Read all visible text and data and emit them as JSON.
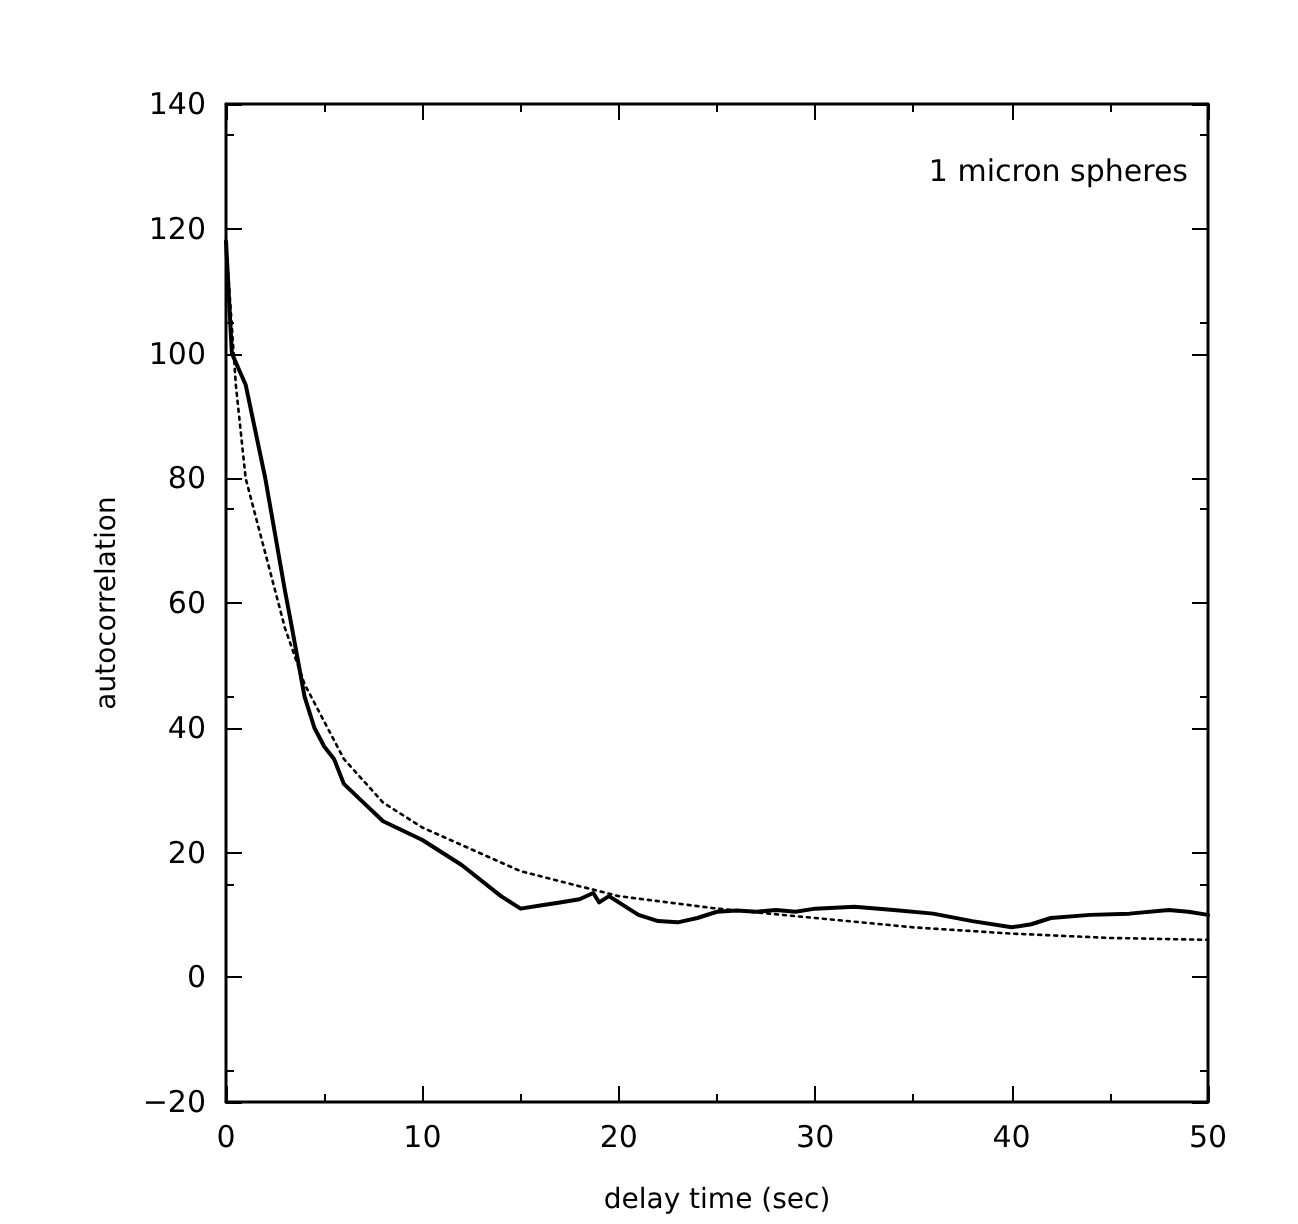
{
  "chart_data": {
    "type": "line",
    "xlabel": "delay time (sec)",
    "ylabel": "autocorrelation",
    "annotations": [
      "1 micron spheres"
    ],
    "xlim": [
      0,
      50
    ],
    "xticks": [
      0,
      10,
      20,
      30,
      40,
      50
    ],
    "ylim": [
      -20,
      140
    ],
    "yticks": [
      -20,
      0,
      20,
      40,
      60,
      80,
      100,
      120,
      140
    ],
    "grid": false,
    "marker": "none",
    "series": [
      {
        "color": "#000000",
        "line_style": "solid",
        "x": [
          0,
          0.3,
          1,
          2,
          3,
          3.3,
          4,
          4.5,
          5,
          5.5,
          6,
          7,
          8,
          10,
          12,
          14,
          15,
          16,
          17,
          18,
          18.7,
          19,
          19.5,
          20,
          21,
          22,
          23,
          24,
          25,
          26,
          27,
          28,
          29,
          30,
          32,
          34,
          36,
          38,
          40,
          41,
          42,
          44,
          46,
          48,
          49,
          50
        ],
        "values": [
          118,
          100,
          95,
          80,
          62,
          57,
          45,
          40,
          37,
          35,
          31,
          28,
          25,
          22,
          18,
          13,
          11,
          11.5,
          12,
          12.5,
          13.5,
          12,
          13,
          12,
          10,
          9,
          8.8,
          9.5,
          10.5,
          10.7,
          10.5,
          10.8,
          10.5,
          11,
          11.3,
          10.8,
          10.2,
          9,
          8,
          8.5,
          9.5,
          10,
          10.2,
          10.8,
          10.5,
          10
        ]
      },
      {
        "color": "#000000",
        "line_style": "dotted",
        "x": [
          0,
          0.5,
          1,
          2,
          3,
          4,
          6,
          8,
          10,
          15,
          20,
          25,
          30,
          35,
          40,
          45,
          50
        ],
        "values": [
          118,
          95,
          80,
          68,
          56,
          47,
          35,
          28,
          24,
          17,
          13,
          11,
          9.5,
          8,
          7,
          6.3,
          6
        ]
      }
    ]
  }
}
